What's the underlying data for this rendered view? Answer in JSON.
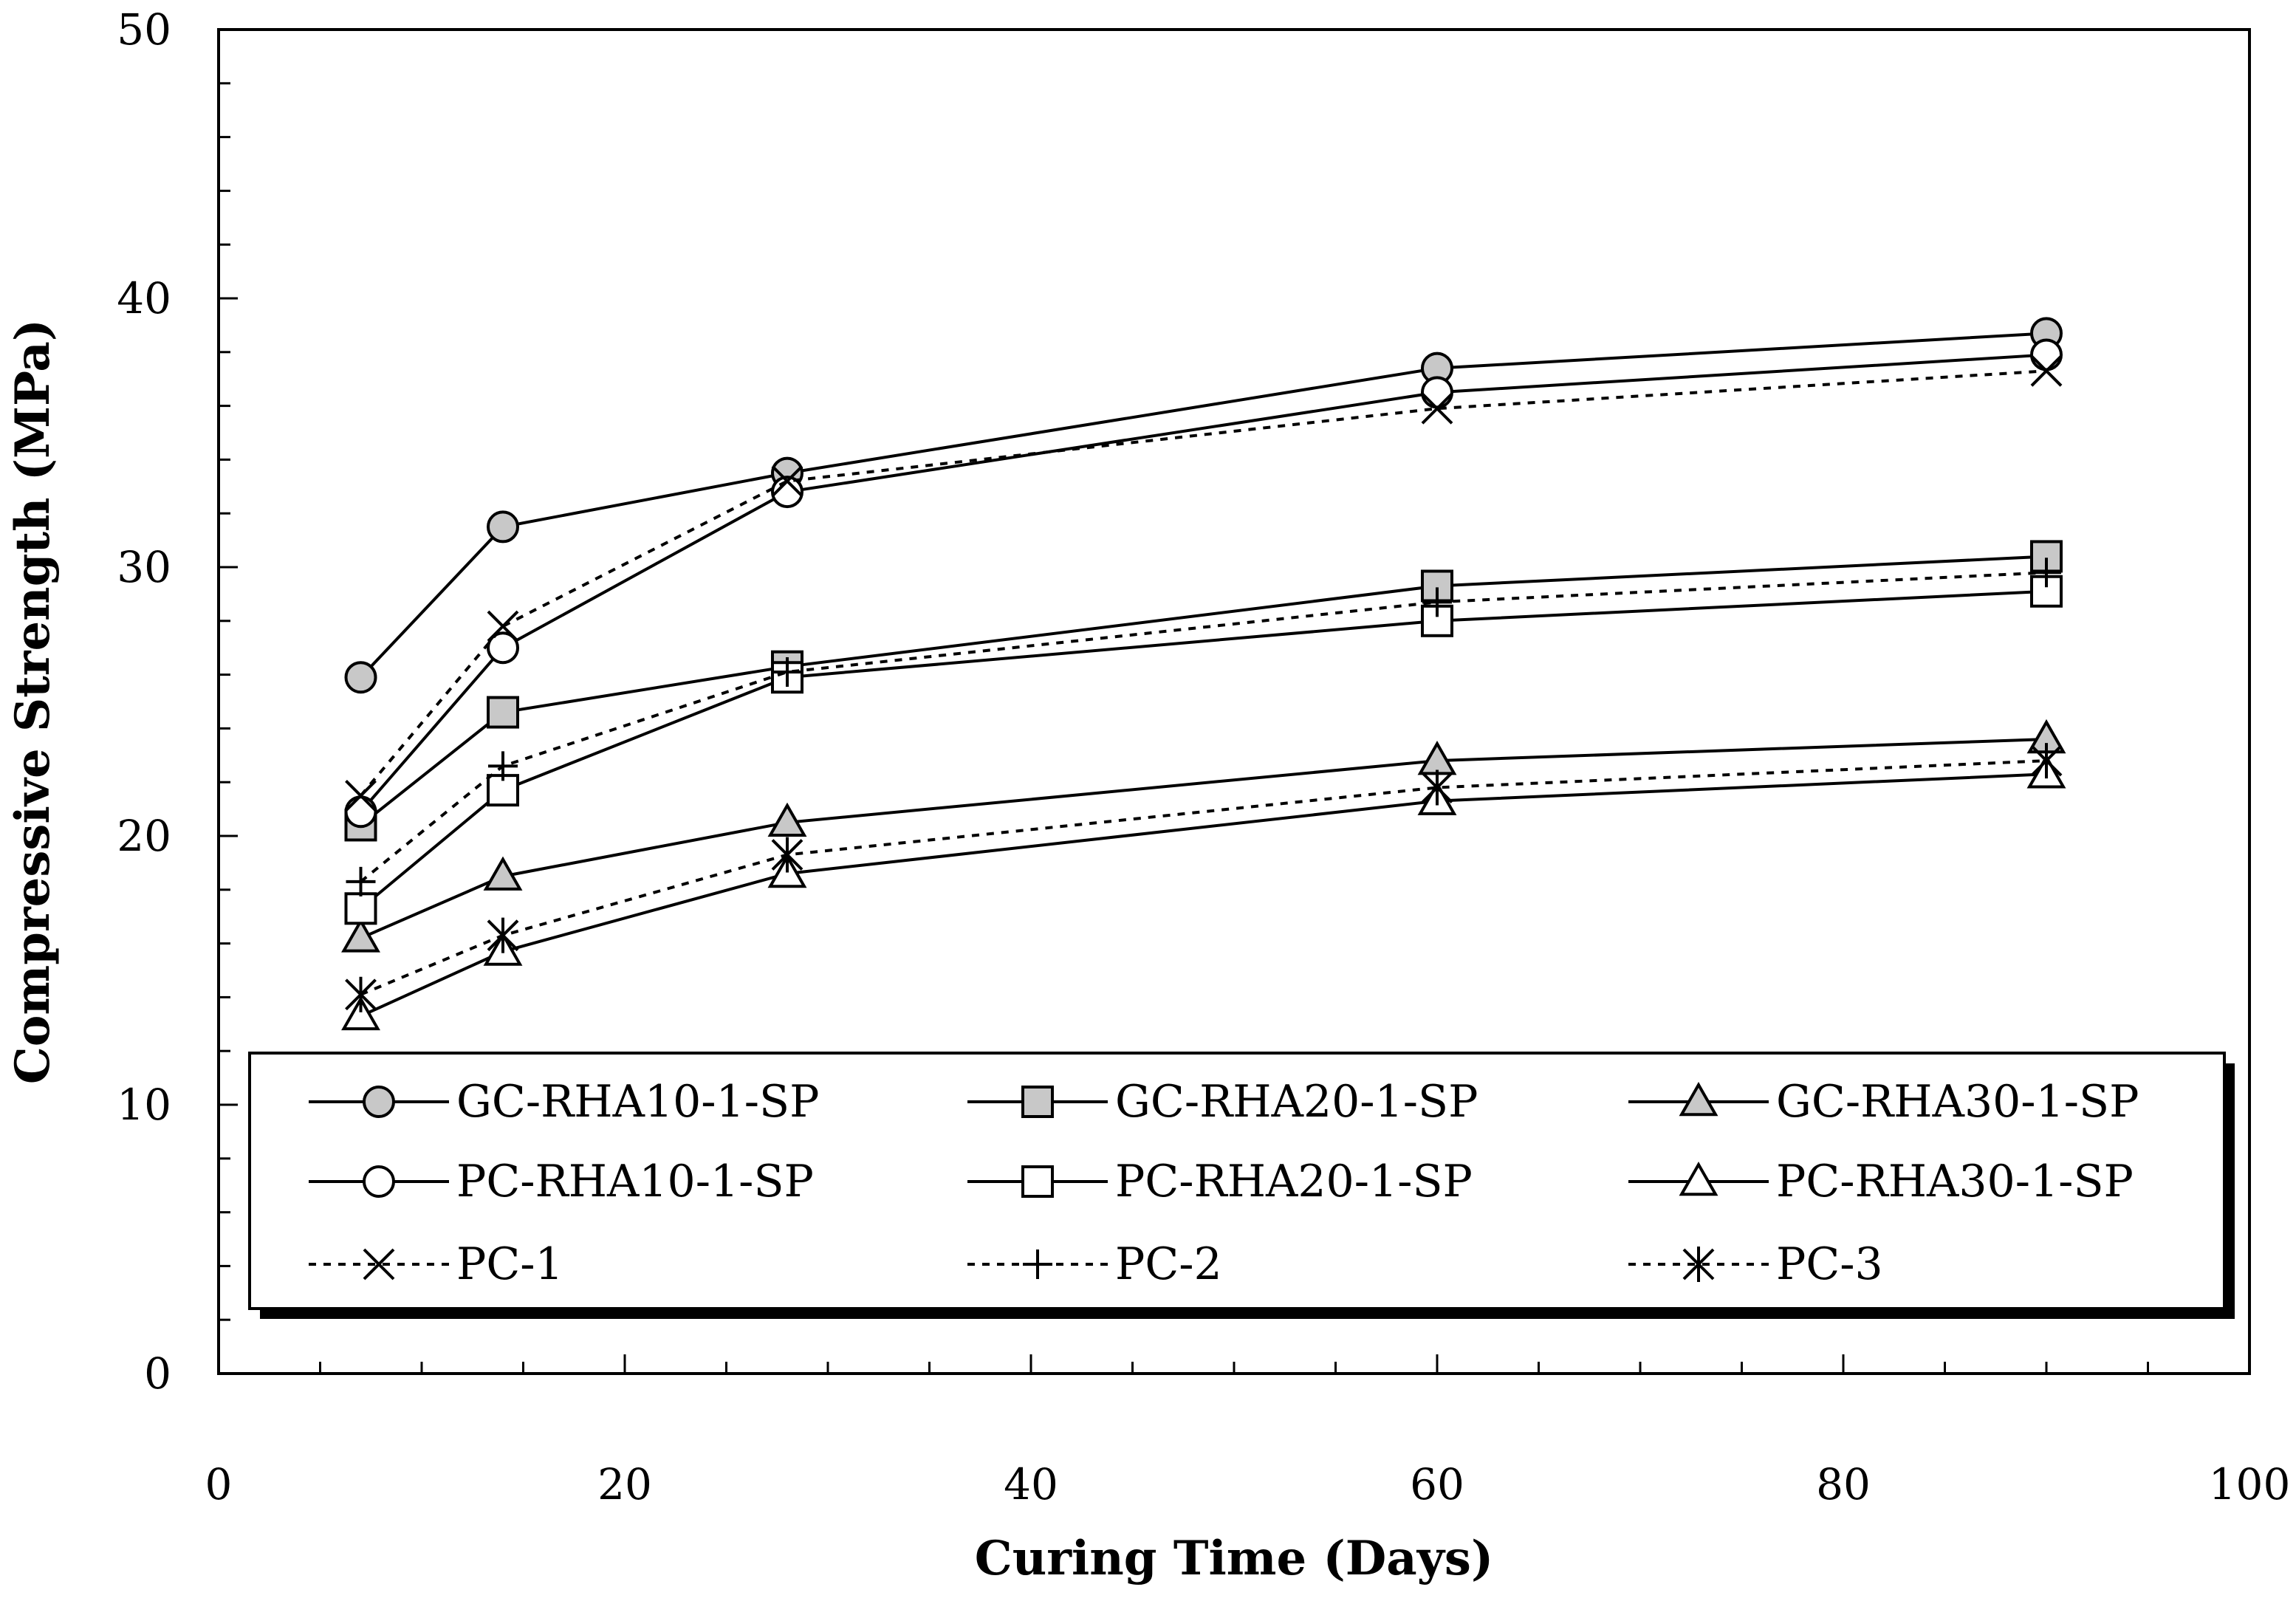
{
  "chart_data": {
    "type": "line",
    "xlabel": "Curing Time (Days)",
    "ylabel": "Compressive Strength (MPa)",
    "xlim": [
      0,
      100
    ],
    "ylim": [
      0,
      50
    ],
    "x_major_ticks": [
      0,
      20,
      40,
      60,
      80,
      100
    ],
    "x_tick_labels": [
      "0",
      "20",
      "40",
      "60",
      "80",
      "100"
    ],
    "y_major_ticks": [
      0,
      10,
      20,
      30,
      40,
      50
    ],
    "y_tick_labels": [
      "0",
      "10",
      "20",
      "30",
      "40",
      "50"
    ],
    "x_minor_step": 5,
    "y_minor_step": 2,
    "grid": false,
    "legend_position": "bottom",
    "x": [
      7,
      14,
      28,
      60,
      90
    ],
    "series": [
      {
        "name": "GC-RHA10-1-SP",
        "values": [
          25.9,
          31.5,
          33.5,
          37.4,
          38.7
        ],
        "marker": "circle",
        "fill": "#c8c8c8",
        "dash": "solid"
      },
      {
        "name": "GC-RHA20-1-SP",
        "values": [
          20.4,
          24.6,
          26.3,
          29.3,
          30.4
        ],
        "marker": "square",
        "fill": "#c8c8c8",
        "dash": "solid"
      },
      {
        "name": "GC-RHA30-1-SP",
        "values": [
          16.2,
          18.5,
          20.5,
          22.8,
          23.6
        ],
        "marker": "triangle",
        "fill": "#c8c8c8",
        "dash": "solid"
      },
      {
        "name": "PC-RHA10-1-SP",
        "values": [
          20.9,
          27.0,
          32.8,
          36.5,
          37.9
        ],
        "marker": "circle",
        "fill": "#ffffff",
        "dash": "solid"
      },
      {
        "name": "PC-RHA20-1-SP",
        "values": [
          17.3,
          21.7,
          25.9,
          28.0,
          29.1
        ],
        "marker": "square",
        "fill": "#ffffff",
        "dash": "solid"
      },
      {
        "name": "PC-RHA30-1-SP",
        "values": [
          13.3,
          15.7,
          18.6,
          21.3,
          22.3
        ],
        "marker": "triangle",
        "fill": "#ffffff",
        "dash": "solid"
      },
      {
        "name": "PC-1",
        "values": [
          21.5,
          27.8,
          33.2,
          35.9,
          37.3
        ],
        "marker": "x",
        "fill": "none",
        "dash": "dotted"
      },
      {
        "name": "PC-2",
        "values": [
          18.3,
          22.6,
          26.1,
          28.7,
          29.8
        ],
        "marker": "plus",
        "fill": "none",
        "dash": "dotted"
      },
      {
        "name": "PC-3",
        "values": [
          14.1,
          16.3,
          19.3,
          21.8,
          22.8
        ],
        "marker": "asterisk",
        "fill": "none",
        "dash": "dotted"
      }
    ]
  }
}
